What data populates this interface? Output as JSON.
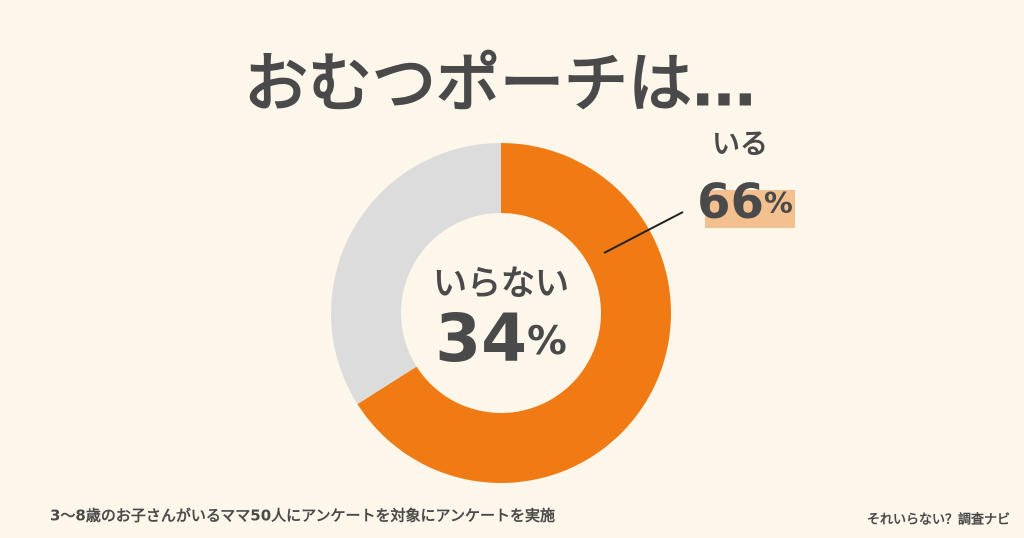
{
  "chart_data": {
    "type": "pie",
    "donut": true,
    "title": "おむつポーチは…",
    "categories": [
      "いる",
      "いらない"
    ],
    "values": [
      66,
      34
    ],
    "value_labels": [
      "66%",
      "34%"
    ],
    "colors": [
      "#f07b14",
      "#dcdcdc"
    ],
    "footnote": "3〜8歳のお子さんがいるママ50人にアンケートを対象にアンケートを実施",
    "source": "それいらない？調査ナビ"
  }
}
